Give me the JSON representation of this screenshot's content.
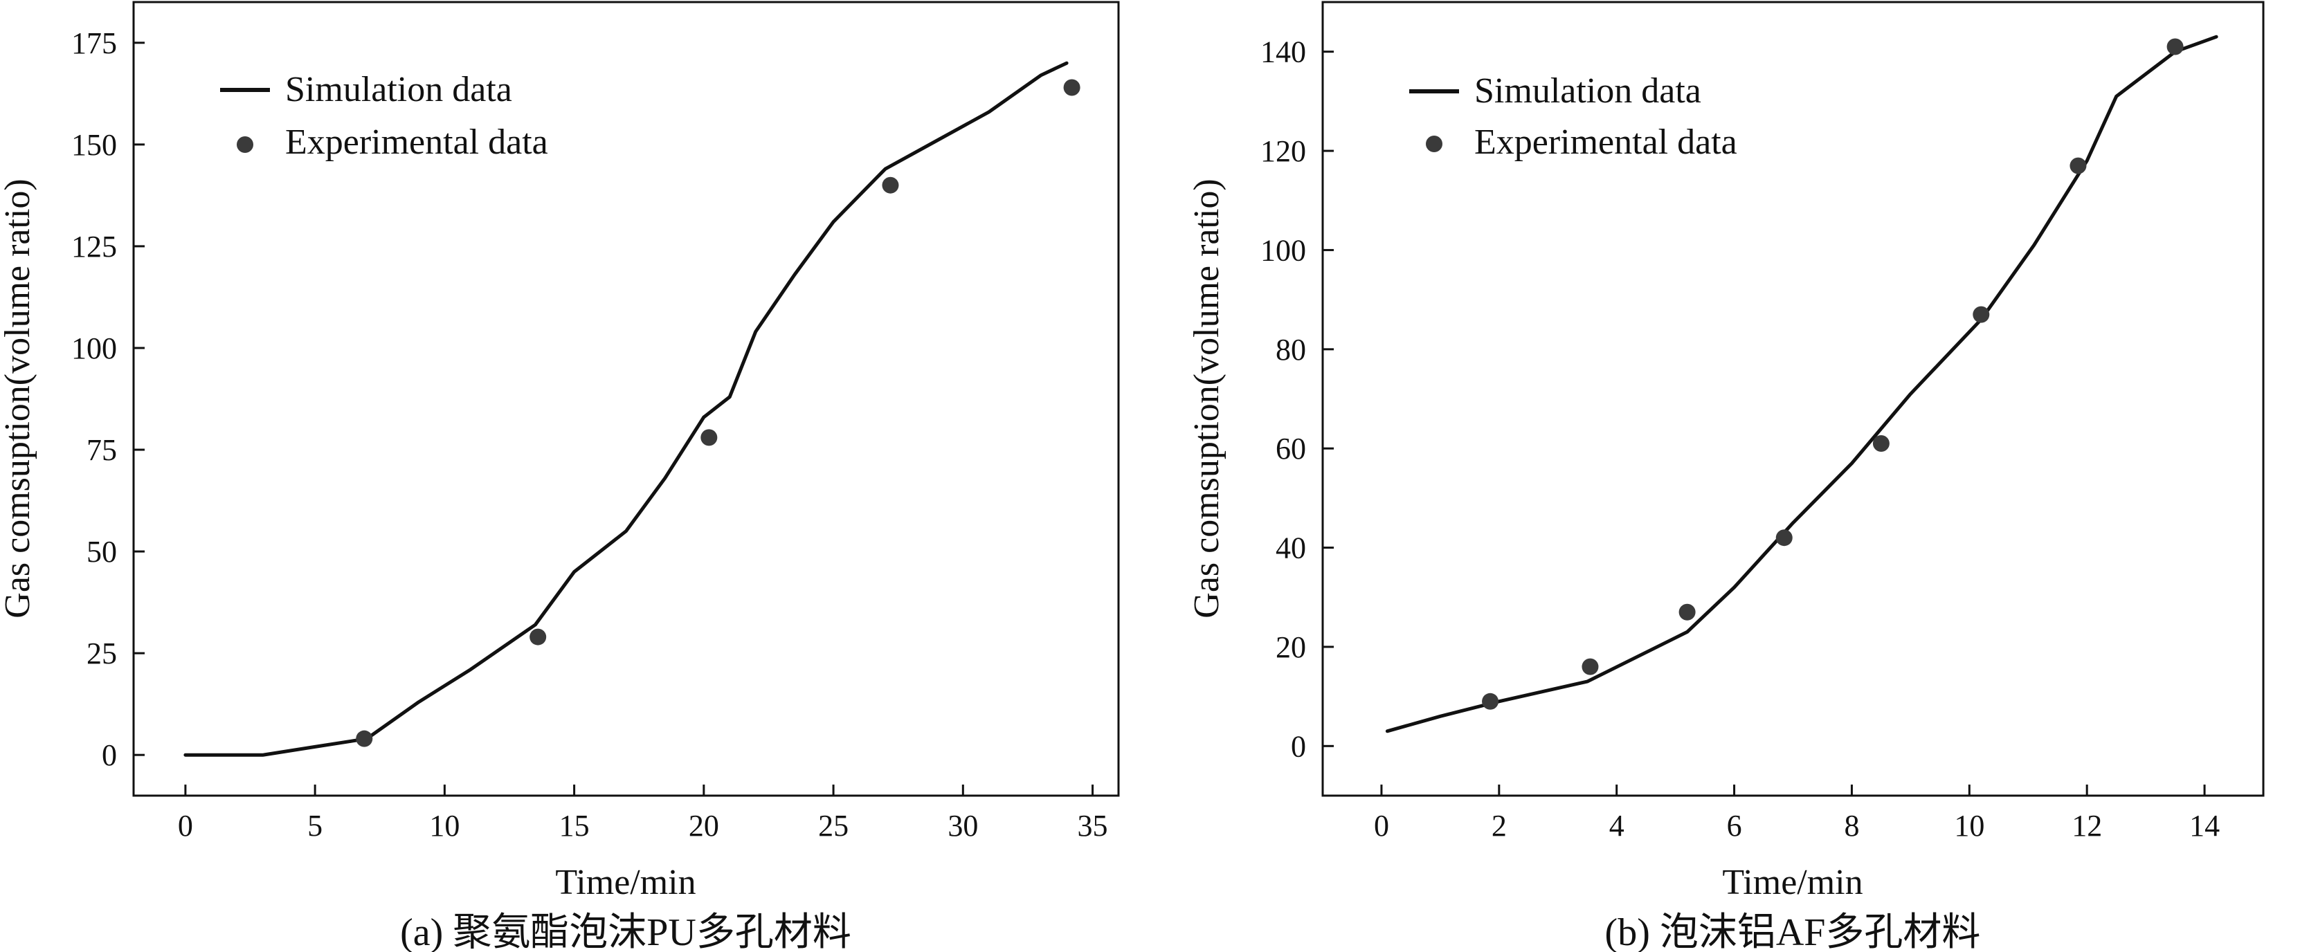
{
  "chart_data": [
    {
      "type": "line",
      "caption": "(a) 聚氨酯泡沫PU多孔材料",
      "xlabel": "Time/min",
      "ylabel": "Gas comsuption(volume ratio)",
      "xlim": [
        -2,
        36
      ],
      "ylim": [
        -10,
        185
      ],
      "xticks": [
        0,
        5,
        10,
        15,
        20,
        25,
        30,
        35
      ],
      "yticks": [
        0,
        25,
        50,
        75,
        100,
        125,
        150,
        175
      ],
      "legend_position": "top-left",
      "series": [
        {
          "name": "Simulation data",
          "style": "line",
          "x": [
            0,
            3,
            5,
            7,
            9,
            11,
            13.5,
            15,
            17,
            18.5,
            20,
            21,
            22,
            23.5,
            25,
            27,
            29,
            31,
            33,
            34
          ],
          "y": [
            0,
            0,
            2,
            4,
            13,
            21,
            32,
            45,
            55,
            68,
            83,
            88,
            104,
            118,
            131,
            144,
            151,
            158,
            167,
            170
          ]
        },
        {
          "name": "Experimental data",
          "style": "scatter",
          "x": [
            6.9,
            13.6,
            20.2,
            27.2,
            34.2
          ],
          "y": [
            4,
            29,
            78,
            140,
            164
          ]
        }
      ]
    },
    {
      "type": "line",
      "caption": "(b) 泡沫铝AF多孔材料",
      "xlabel": "Time/min",
      "ylabel": "Gas comsuption(volume ratio)",
      "xlim": [
        -1,
        15
      ],
      "ylim": [
        -10,
        150
      ],
      "xticks": [
        0,
        2,
        4,
        6,
        8,
        10,
        12,
        14
      ],
      "yticks": [
        0,
        20,
        40,
        60,
        80,
        100,
        120,
        140
      ],
      "legend_position": "top-left",
      "series": [
        {
          "name": "Simulation data",
          "style": "line",
          "x": [
            0.1,
            1,
            2,
            3.5,
            5.2,
            6,
            7,
            8,
            9,
            10.2,
            11.1,
            12,
            12.5,
            13.5,
            14.2
          ],
          "y": [
            3,
            6,
            9,
            13,
            23,
            32,
            45,
            57,
            71,
            86,
            101,
            118,
            131,
            140,
            143
          ]
        },
        {
          "name": "Experimental data",
          "style": "scatter",
          "x": [
            1.85,
            3.55,
            5.2,
            6.85,
            8.5,
            10.2,
            11.85,
            13.5
          ],
          "y": [
            9,
            16,
            27,
            42,
            61,
            87,
            117,
            141
          ]
        }
      ]
    }
  ]
}
